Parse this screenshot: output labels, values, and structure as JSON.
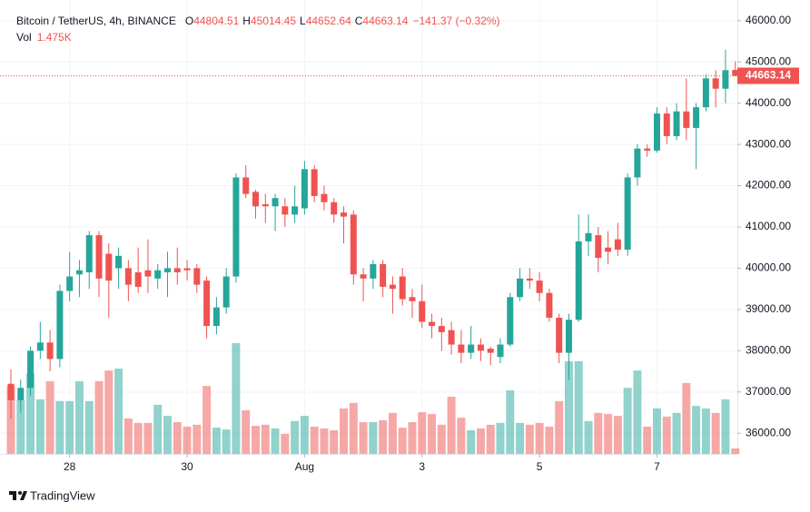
{
  "chart_data": {
    "type": "candlestick",
    "title": "Bitcoin / TetherUS, 4h, BINANCE",
    "ohlc_prefixes": [
      "O",
      "H",
      "L",
      "C"
    ],
    "change_label": "−141.37 (−0.32%)",
    "volume_title": "Vol",
    "volume_label": "1.475K",
    "brand": "TradingView",
    "up_color": "#26a69a",
    "down_color": "#ef5350",
    "open": [
      37200,
      36800,
      37100,
      38000,
      38200,
      37800,
      39450,
      39850,
      39900,
      40800,
      40350,
      40000,
      40000,
      39900,
      39950,
      39750,
      39900,
      40000,
      40000,
      40000,
      39700,
      38600,
      39050,
      39800,
      42200,
      41850,
      41550,
      41500,
      41500,
      41300,
      41450,
      42400,
      41800,
      41600,
      41350,
      41300,
      39850,
      39750,
      40100,
      39600,
      39800,
      39300,
      39200,
      38700,
      38600,
      38500,
      38150,
      37950,
      38150,
      38050,
      37850,
      38150,
      39300,
      39750,
      39700,
      39400,
      38800,
      37950,
      38750,
      40650,
      40800,
      40500,
      40700,
      40450,
      42200,
      42900,
      42850,
      43750,
      43200,
      43800,
      43400,
      43900,
      44600,
      44350,
      44804.51
    ],
    "high": [
      37550,
      37300,
      38100,
      38700,
      38500,
      39600,
      40400,
      40200,
      40900,
      40900,
      40600,
      40500,
      40200,
      40500,
      40700,
      40100,
      40400,
      40500,
      40200,
      40100,
      39800,
      39300,
      40000,
      42300,
      42500,
      41900,
      41800,
      41800,
      41700,
      42000,
      42600,
      42500,
      42000,
      41700,
      41500,
      41400,
      40000,
      40200,
      40200,
      39800,
      40000,
      39500,
      39600,
      38900,
      38800,
      38700,
      38500,
      38600,
      38300,
      38100,
      38300,
      39400,
      40000,
      40000,
      39900,
      39500,
      38900,
      38900,
      41300,
      41300,
      41000,
      40900,
      41100,
      42300,
      43000,
      43000,
      43900,
      43900,
      44000,
      44600,
      44000,
      44700,
      44800,
      45300,
      45014.45
    ],
    "low": [
      36350,
      36500,
      36900,
      37800,
      37500,
      37600,
      39200,
      39300,
      39500,
      39300,
      38800,
      39500,
      39200,
      39400,
      39400,
      39500,
      39300,
      39600,
      39700,
      39400,
      38300,
      38400,
      38900,
      39650,
      41700,
      41200,
      41100,
      40900,
      41000,
      41100,
      41300,
      41600,
      41400,
      41100,
      40600,
      39600,
      39200,
      39500,
      39300,
      38900,
      39100,
      38800,
      38550,
      38300,
      38000,
      37900,
      37700,
      37800,
      37750,
      37650,
      37700,
      38100,
      39200,
      39500,
      39200,
      38700,
      37700,
      37300,
      38700,
      40300,
      39900,
      40100,
      40300,
      40300,
      42000,
      42700,
      42800,
      43000,
      43100,
      43100,
      42400,
      43800,
      43900,
      44000,
      44652.64
    ],
    "close": [
      36800,
      37100,
      38000,
      38200,
      37800,
      39450,
      39800,
      39950,
      40800,
      39750,
      39700,
      40300,
      39600,
      39550,
      39800,
      39950,
      40000,
      39900,
      39950,
      39600,
      38600,
      39050,
      39800,
      42200,
      41800,
      41500,
      41500,
      41700,
      41300,
      41500,
      42400,
      41750,
      41600,
      41300,
      41250,
      39850,
      39750,
      40100,
      39550,
      39500,
      39250,
      39200,
      38700,
      38600,
      38450,
      38150,
      37950,
      38150,
      38000,
      37950,
      38150,
      39300,
      39750,
      39700,
      39400,
      38800,
      37950,
      38750,
      40650,
      40850,
      40250,
      40400,
      40450,
      42200,
      42900,
      42850,
      43750,
      43200,
      43800,
      43400,
      43900,
      44600,
      44350,
      44800,
      44663.14
    ],
    "volume": [
      18.4,
      14.5,
      21.9,
      14.8,
      19.7,
      14.3,
      14.3,
      19.7,
      14.3,
      19.7,
      22.6,
      23.1,
      9.6,
      8.4,
      8.4,
      13.3,
      10.3,
      8.6,
      7.4,
      7.9,
      18.4,
      7.1,
      6.6,
      30.0,
      11.8,
      7.6,
      7.9,
      6.9,
      5.4,
      8.9,
      10.3,
      7.4,
      6.9,
      6.4,
      12.3,
      13.8,
      8.6,
      8.6,
      9.1,
      11.1,
      7.1,
      8.6,
      11.3,
      10.8,
      7.9,
      15.5,
      9.8,
      6.4,
      6.9,
      7.9,
      8.4,
      17.2,
      8.4,
      7.9,
      8.4,
      7.4,
      14.3,
      25.1,
      25.1,
      8.9,
      11.1,
      10.8,
      10.3,
      17.9,
      22.6,
      7.4,
      12.3,
      10.1,
      11.1,
      19.2,
      13.0,
      12.3,
      11.1,
      14.8,
      1.475
    ],
    "volume_lim": [
      0,
      30
    ],
    "ylim": [
      35500,
      46500
    ],
    "yticks": [
      {
        "value": 36000,
        "label": "36000.00"
      },
      {
        "value": 37000,
        "label": "37000.00"
      },
      {
        "value": 38000,
        "label": "38000.00"
      },
      {
        "value": 39000,
        "label": "39000.00"
      },
      {
        "value": 40000,
        "label": "40000.00"
      },
      {
        "value": 41000,
        "label": "41000.00"
      },
      {
        "value": 42000,
        "label": "42000.00"
      },
      {
        "value": 43000,
        "label": "43000.00"
      },
      {
        "value": 44000,
        "label": "44000.00"
      },
      {
        "value": 45000,
        "label": "45000.00"
      },
      {
        "value": 46000,
        "label": "46000.00"
      }
    ],
    "xticks": [
      {
        "value": 6,
        "label": "28"
      },
      {
        "value": 18,
        "label": "30"
      },
      {
        "value": 30,
        "label": "Aug"
      },
      {
        "value": 42,
        "label": "3"
      },
      {
        "value": 54,
        "label": "5"
      },
      {
        "value": 66,
        "label": "7"
      }
    ],
    "grid": true
  }
}
